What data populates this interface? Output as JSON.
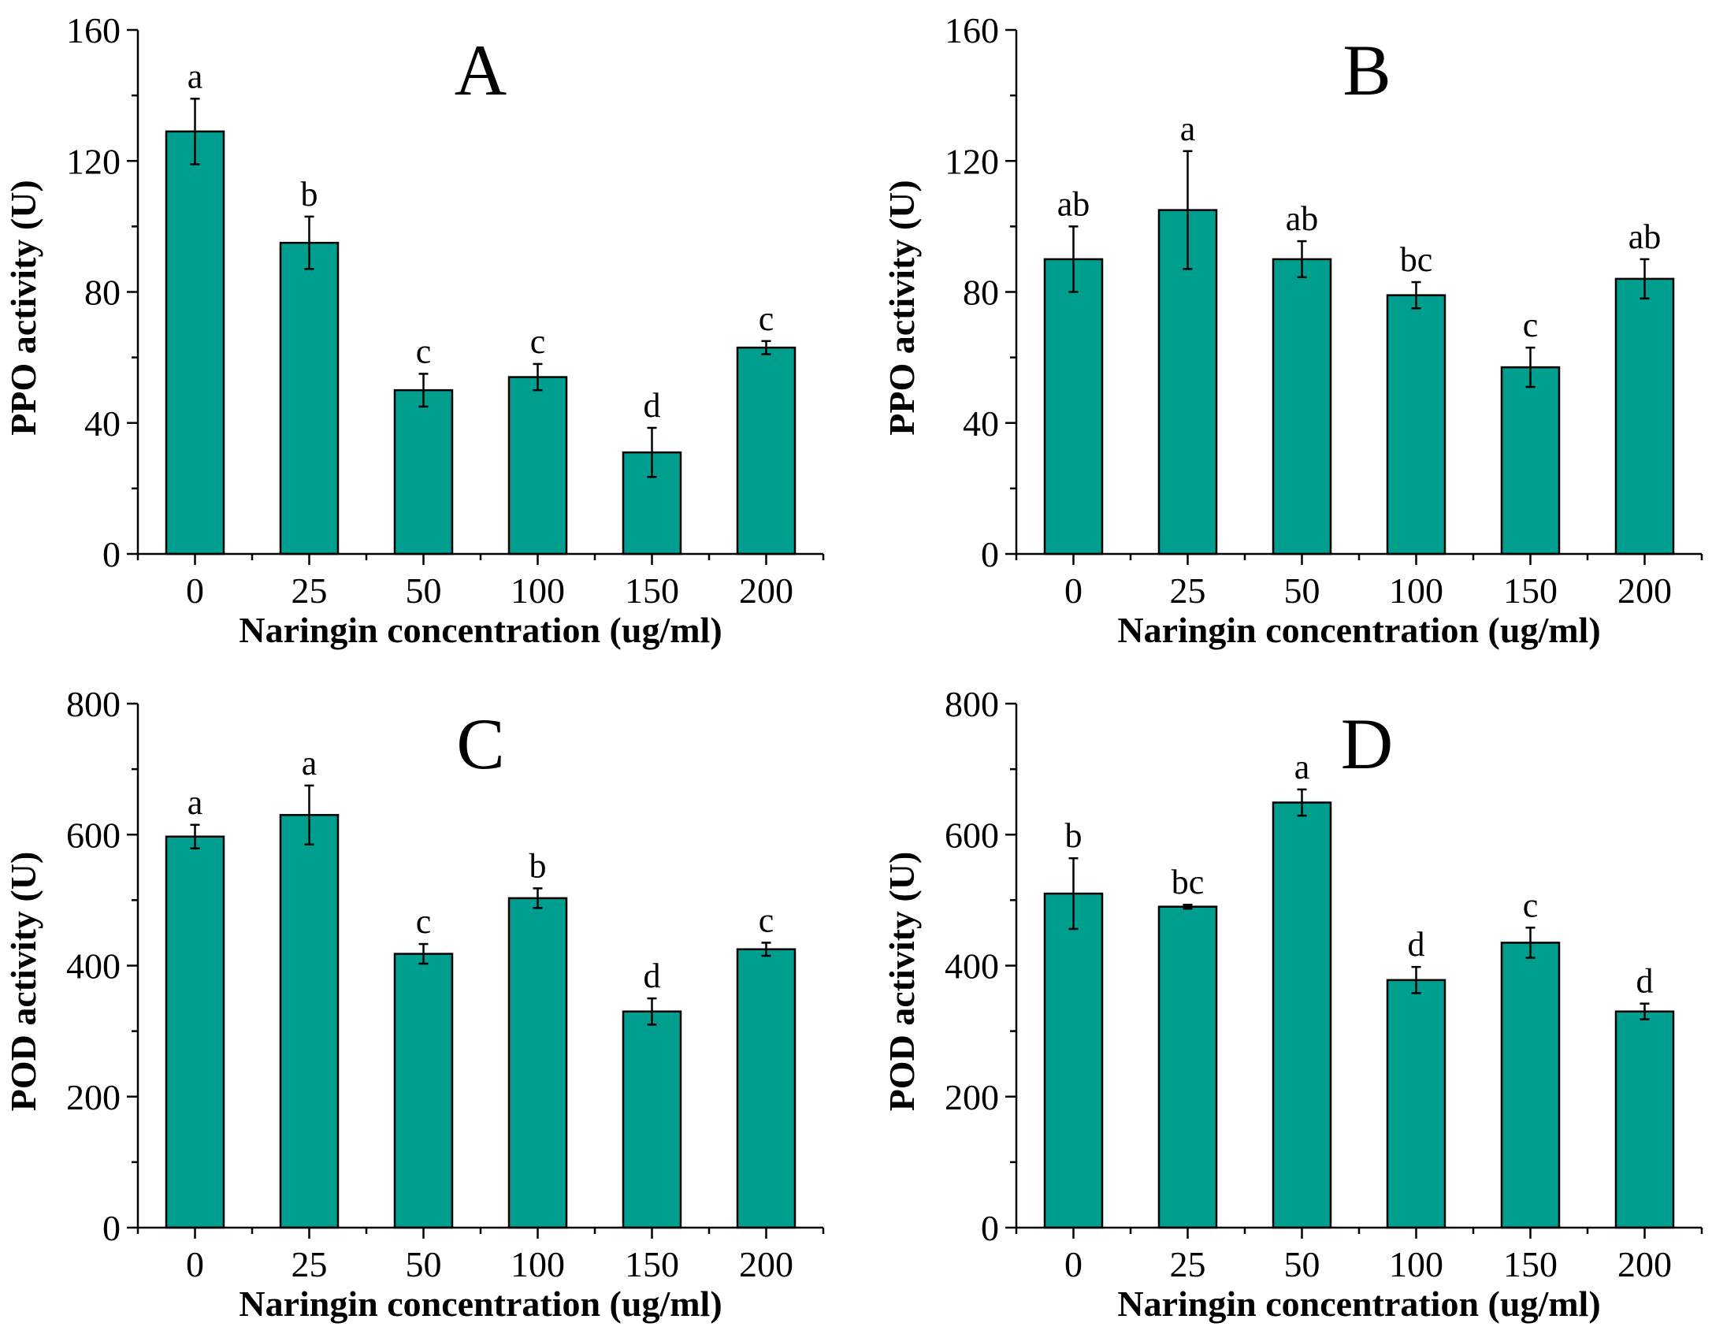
{
  "figure": {
    "colors": {
      "bar": "#009e8e",
      "axis": "#000000",
      "error": "#000000"
    }
  },
  "chart_data": [
    {
      "type": "bar",
      "title": "A",
      "xlabel": "Naringin concentration (ug/ml)",
      "ylabel": "PPO activity (U)",
      "categories": [
        "0",
        "25",
        "50",
        "100",
        "150",
        "200"
      ],
      "values": [
        129,
        95,
        50,
        54,
        31,
        63
      ],
      "errors": [
        10,
        8,
        5,
        4,
        7.5,
        2
      ],
      "letters": [
        "a",
        "b",
        "c",
        "c",
        "d",
        "c"
      ],
      "ylim": [
        0,
        160
      ],
      "yticks": [
        0,
        40,
        80,
        120,
        160
      ]
    },
    {
      "type": "bar",
      "title": "B",
      "xlabel": "Naringin concentration (ug/ml)",
      "ylabel": "PPO activity (U)",
      "categories": [
        "0",
        "25",
        "50",
        "100",
        "150",
        "200"
      ],
      "values": [
        90,
        105,
        90,
        79,
        57,
        84
      ],
      "errors": [
        10,
        18,
        5.5,
        4,
        6,
        6
      ],
      "letters": [
        "ab",
        "a",
        "ab",
        "bc",
        "c",
        "ab"
      ],
      "ylim": [
        0,
        160
      ],
      "yticks": [
        0,
        40,
        80,
        120,
        160
      ]
    },
    {
      "type": "bar",
      "title": "C",
      "xlabel": "Naringin concentration (ug/ml)",
      "ylabel": "POD activity (U)",
      "categories": [
        "0",
        "25",
        "50",
        "100",
        "150",
        "200"
      ],
      "values": [
        597,
        630,
        418,
        503,
        330,
        425
      ],
      "errors": [
        18,
        45,
        15,
        15,
        20,
        10
      ],
      "letters": [
        "a",
        "a",
        "c",
        "b",
        "d",
        "c"
      ],
      "ylim": [
        0,
        800
      ],
      "yticks": [
        0,
        200,
        400,
        600,
        800
      ]
    },
    {
      "type": "bar",
      "title": "D",
      "xlabel": "Naringin concentration (ug/ml)",
      "ylabel": "POD activity (U)",
      "categories": [
        "0",
        "25",
        "50",
        "100",
        "150",
        "200"
      ],
      "values": [
        510,
        490,
        649,
        378,
        435,
        330
      ],
      "errors": [
        54,
        3,
        20,
        20,
        23,
        12
      ],
      "letters": [
        "b",
        "bc",
        "a",
        "d",
        "c",
        "d"
      ],
      "ylim": [
        0,
        800
      ],
      "yticks": [
        0,
        200,
        400,
        600,
        800
      ]
    }
  ]
}
